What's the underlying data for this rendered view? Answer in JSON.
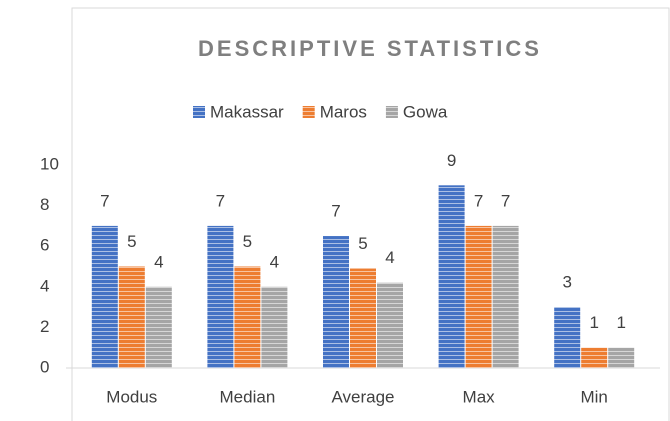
{
  "chart_data": {
    "type": "bar",
    "title": "DESCRIPTIVE STATISTICS",
    "categories": [
      "Modus",
      "Median",
      "Average",
      "Max",
      "Min"
    ],
    "series": [
      {
        "name": "Makassar",
        "color": "#4472c4",
        "values": [
          7,
          7,
          6.5,
          9,
          3
        ],
        "value_labels": [
          "7",
          "7",
          "7",
          "9",
          "3"
        ]
      },
      {
        "name": "Maros",
        "color": "#ed7d31",
        "values": [
          5,
          5,
          4.9,
          7,
          1
        ],
        "value_labels": [
          "5",
          "5",
          "5",
          "7",
          "1"
        ]
      },
      {
        "name": "Gowa",
        "color": "#a5a5a5",
        "values": [
          4,
          4,
          4.2,
          7,
          1
        ],
        "value_labels": [
          "4",
          "4",
          "4",
          "7",
          "1"
        ]
      }
    ],
    "ylim": [
      0,
      10
    ],
    "yticks": [
      0,
      2,
      4,
      6,
      8,
      10
    ],
    "grid": false,
    "legend": "top"
  }
}
